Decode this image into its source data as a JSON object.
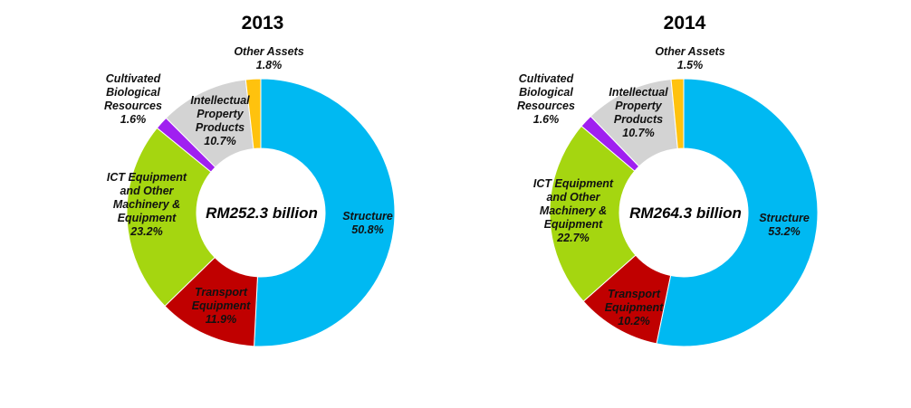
{
  "chart_data": [
    {
      "type": "pie",
      "variant": "donut",
      "title": "2013",
      "center_label": "RM252.3 billion",
      "categories": [
        "Structure",
        "Transport Equipment",
        "ICT Equipment and Other Machinery & Equipment",
        "Cultivated Biological Resources",
        "Intellectual Property Products",
        "Other Assets"
      ],
      "values": [
        50.8,
        11.9,
        23.2,
        1.6,
        10.7,
        1.8
      ],
      "labels": {
        "structure": "Structure\n50.8%",
        "transport": "Transport\nEquipment\n11.9%",
        "ict": "ICT Equipment\nand Other\nMachinery &\nEquipment\n23.2%",
        "cultivated": "Cultivated\nBiological\nResources\n1.6%",
        "ipp": "Intellectual\nProperty\nProducts\n10.7%",
        "other": "Other Assets\n1.8%"
      },
      "colors": [
        "#00B9F2",
        "#C00000",
        "#A5D610",
        "#A020F0",
        "#D3D3D3",
        "#FFC20E"
      ]
    },
    {
      "type": "pie",
      "variant": "donut",
      "title": "2014",
      "center_label": "RM264.3 billion",
      "categories": [
        "Structure",
        "Transport Equipment",
        "ICT Equipment and Other Machinery & Equipment",
        "Cultivated Biological Resources",
        "Intellectual Property Products",
        "Other Assets"
      ],
      "values": [
        53.2,
        10.2,
        22.7,
        1.6,
        10.7,
        1.5
      ],
      "labels": {
        "structure": "Structure\n53.2%",
        "transport": "Transport\nEquipment\n10.2%",
        "ict": "ICT Equipment\nand Other\nMachinery &\nEquipment\n22.7%",
        "cultivated": "Cultivated\nBiological\nResources\n1.6%",
        "ipp": "Intellectual\nProperty\nProducts\n10.7%",
        "other": "Other Assets\n1.5%"
      },
      "colors": [
        "#00B9F2",
        "#C00000",
        "#A5D610",
        "#A020F0",
        "#D3D3D3",
        "#FFC20E"
      ]
    }
  ]
}
